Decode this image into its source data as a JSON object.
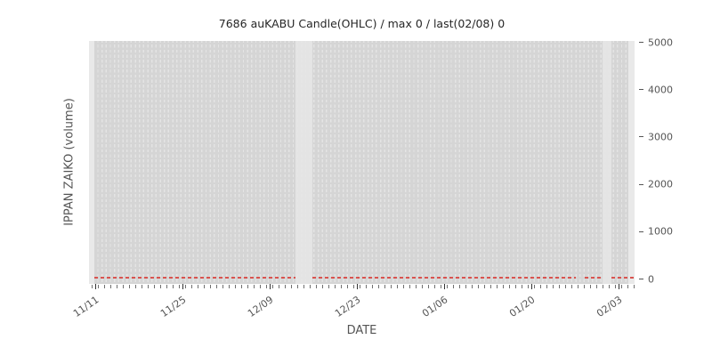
{
  "figure": {
    "background": "#ffffff",
    "plot_background": "#d5d5d5"
  },
  "chart_data": {
    "type": "bar",
    "title": "7686 auKABU Candle(OHLC) / max 0 / last(02/08) 0",
    "xlabel": "DATE",
    "ylabel": "IPPAN ZAIKO (volume)",
    "x_tick_labels": [
      "11/11",
      "11/25",
      "12/09",
      "12/23",
      "01/06",
      "01/20",
      "02/03"
    ],
    "x_tick_interval_days": 14,
    "x_minor_tick_interval_days": 1,
    "y_ticks": [
      0,
      1000,
      2000,
      3000,
      4000,
      5000
    ],
    "y_axis_side": "right",
    "ylim": [
      0,
      5000
    ],
    "grid": {
      "vertical_dashed": true,
      "grid_color": "#e4e4e4"
    },
    "legend_position": "none",
    "series": [
      {
        "name": "IPPAN ZAIKO (volume)",
        "color": "#d9534f",
        "constant_value": 0,
        "max": 0,
        "last_date": "02/08",
        "last_value": 0,
        "date_range": [
          "11/11",
          "02/08"
        ]
      }
    ]
  }
}
